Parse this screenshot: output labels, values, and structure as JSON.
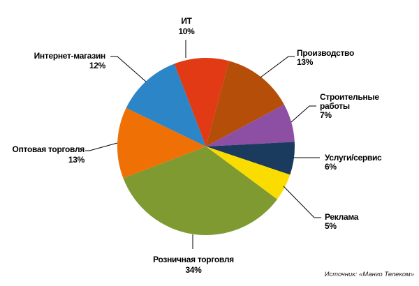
{
  "chart_data": {
    "type": "pie",
    "title": "",
    "categories": [
      "ИТ",
      "Производство",
      "Строительные работы",
      "Услуги/сервис",
      "Реклама",
      "Розничная торговля",
      "Оптовая торговля",
      "Интернет-магазин"
    ],
    "values": [
      10,
      13,
      7,
      6,
      5,
      34,
      13,
      12
    ],
    "slices": [
      {
        "label": "ИТ",
        "pct_label": "10%",
        "value": 10,
        "color": "#E13A14"
      },
      {
        "label": "Производство",
        "pct_label": "13%",
        "value": 13,
        "color": "#B44E09"
      },
      {
        "label": "Строительные работы",
        "pct_label": "7%",
        "value": 7,
        "color": "#8C4FA4"
      },
      {
        "label": "Услуги/сервис",
        "pct_label": "6%",
        "value": 6,
        "color": "#1A3A5E"
      },
      {
        "label": "Реклама",
        "pct_label": "5%",
        "value": 5,
        "color": "#FADC00"
      },
      {
        "label": "Розничная торговля",
        "pct_label": "34%",
        "value": 34,
        "color": "#7E9A31"
      },
      {
        "label": "Оптовая торговля",
        "pct_label": "13%",
        "value": 13,
        "color": "#EF7005"
      },
      {
        "label": "Интернет-магазин",
        "pct_label": "12%",
        "value": 12,
        "color": "#2C85C6"
      }
    ],
    "start_angle_deg": -21,
    "legend_position": "outside-callout-labels",
    "label_line_color": "#000000",
    "background_color": "#FFFFFF"
  },
  "source_note": "Источник: «Манго Телеком»"
}
